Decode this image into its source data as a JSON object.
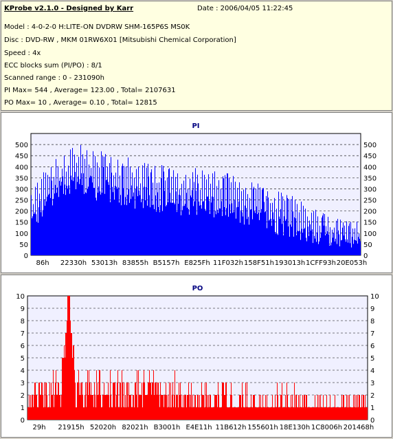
{
  "info": {
    "title": "KProbe v2.1.0 - Designed by Karr",
    "date": "Date : 2006/04/05 11:22:45",
    "model": "Model : 4-0-2-0 H:LITE-ON DVDRW SHM-165P6S MS0K",
    "disc": "Disc : DVD-RW , MKM 01RW6X01 [Mitsubishi Chemical Corporation]",
    "speed": "Speed : 4x",
    "ecc": "ECC blocks sum (PI/PO) : 8/1",
    "range": "Scanned range : 0 - 231090h",
    "pi_stats": "PI Max= 544 , Average= 123.00 , Total= 2107631",
    "po_stats": "PO Max= 10 , Average= 0.10 , Total= 12815"
  },
  "colors": {
    "pi": "#0000ff",
    "po": "#ff0000",
    "panel_bg": "#ffffff",
    "plot_bg": "#f0f0ff",
    "title": "#000080"
  },
  "chart_data": [
    {
      "type": "bar",
      "title": "PI",
      "ylim": [
        0,
        550
      ],
      "yticks": [
        0,
        50,
        100,
        150,
        200,
        250,
        300,
        350,
        400,
        450,
        500
      ],
      "xtick_labels": [
        "86h",
        "22330h",
        "53013h",
        "83855h",
        "B5157h",
        "E825Fh",
        "11F032h",
        "158F51h",
        "193013h",
        "1CFF93h",
        "20E053h"
      ],
      "grid": true,
      "envelope_x": [
        0,
        3,
        6,
        9,
        12,
        15,
        18,
        21,
        24,
        27,
        30,
        33,
        36,
        40,
        45,
        50,
        55,
        60,
        65,
        70,
        75,
        80,
        85,
        90,
        95,
        100
      ],
      "envelope_max": [
        310,
        360,
        430,
        480,
        520,
        544,
        500,
        480,
        460,
        450,
        440,
        420,
        420,
        410,
        400,
        400,
        380,
        370,
        340,
        320,
        300,
        270,
        220,
        180,
        160,
        150
      ],
      "envelope_avg": [
        200,
        260,
        320,
        350,
        380,
        390,
        360,
        350,
        340,
        330,
        320,
        310,
        310,
        300,
        290,
        290,
        280,
        270,
        240,
        220,
        200,
        180,
        140,
        110,
        90,
        85
      ],
      "envelope_min": [
        100,
        150,
        220,
        250,
        280,
        290,
        250,
        240,
        230,
        220,
        210,
        200,
        200,
        190,
        180,
        180,
        170,
        160,
        130,
        110,
        90,
        70,
        55,
        40,
        35,
        35
      ]
    },
    {
      "type": "bar",
      "title": "PO",
      "ylim": [
        0,
        10
      ],
      "yticks": [
        0,
        1,
        2,
        3,
        4,
        5,
        6,
        7,
        8,
        9,
        10
      ],
      "xtick_labels": [
        "29h",
        "21915h",
        "52020h",
        "82021h",
        "B3001h",
        "E4E11h",
        "11B612h",
        "155601h",
        "18E130h",
        "1C8006h",
        "201468h"
      ],
      "grid": true,
      "max": 10,
      "peak_position_pct": 12
    }
  ]
}
